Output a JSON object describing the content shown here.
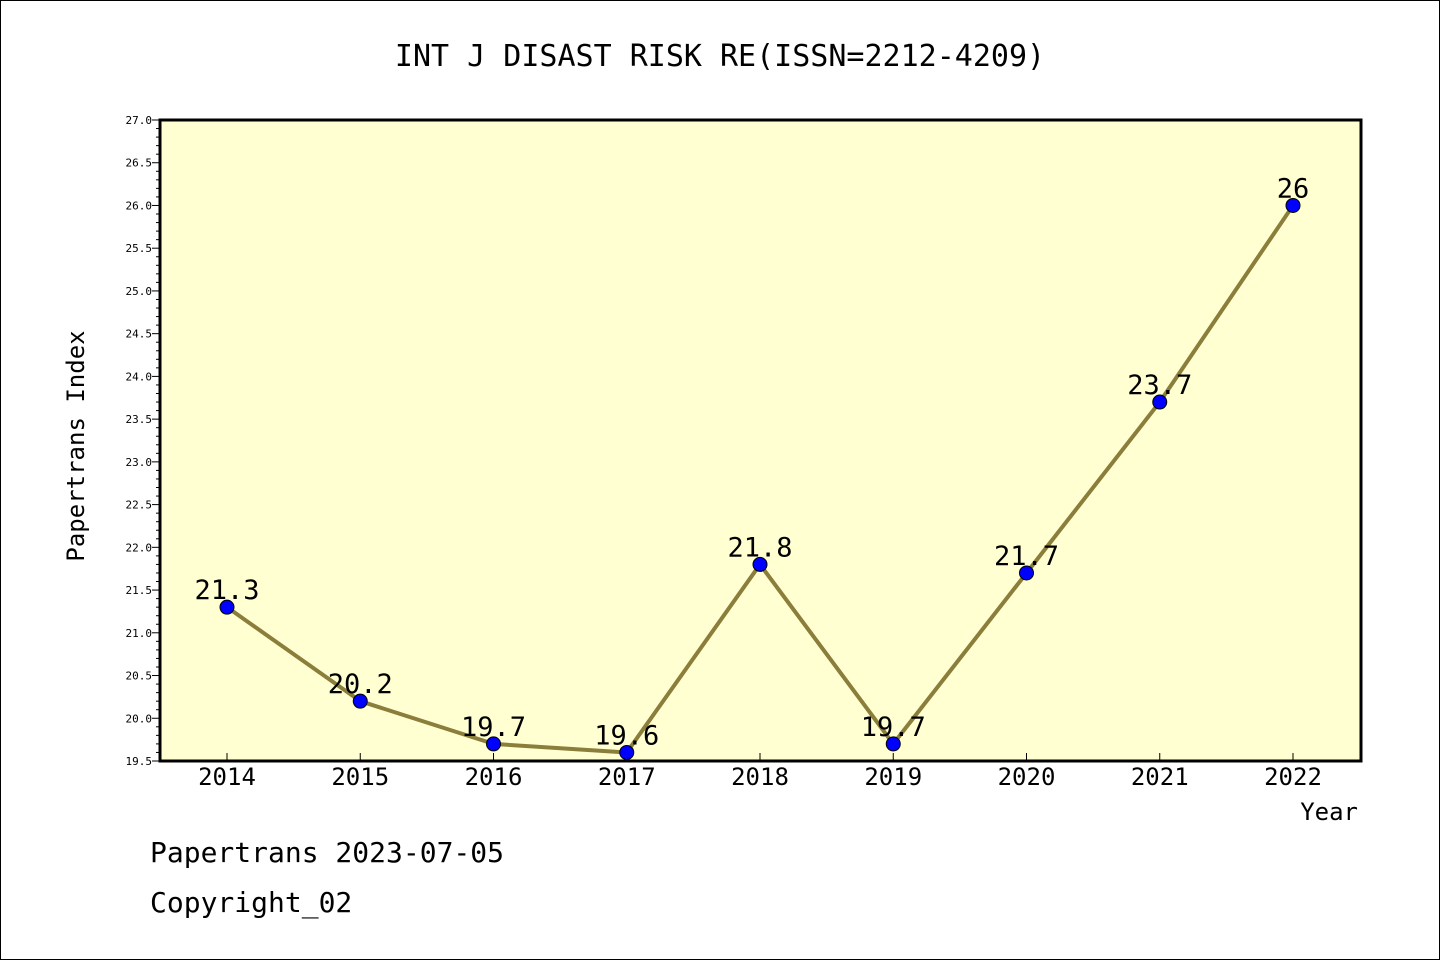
{
  "chart_data": {
    "type": "line",
    "title": "INT J DISAST RISK RE(ISSN=2212-4209)",
    "xlabel": "Year",
    "ylabel": "Papertrans Index",
    "categories": [
      "2014",
      "2015",
      "2016",
      "2017",
      "2018",
      "2019",
      "2020",
      "2021",
      "2022"
    ],
    "values": [
      21.3,
      20.2,
      19.7,
      19.6,
      21.8,
      19.7,
      21.7,
      23.7,
      26
    ],
    "data_labels": [
      "21.3",
      "20.2",
      "19.7",
      "19.6",
      "21.8",
      "19.7",
      "21.7",
      "23.7",
      "26"
    ],
    "ylim": [
      19.5,
      27.0
    ],
    "yticks": [
      "19.5",
      "20.0",
      "20.5",
      "21.0",
      "21.5",
      "22.0",
      "22.5",
      "23.0",
      "23.5",
      "24.0",
      "24.5",
      "25.0",
      "25.5",
      "26.0",
      "26.5",
      "27.0"
    ],
    "grid": false,
    "colors": {
      "plot_background": "#ffffd2",
      "line": "#8b7d3a",
      "marker": "#0000ff"
    }
  },
  "footer": {
    "date_line": "Papertrans 2023-07-05",
    "copyright": "Copyright_02"
  }
}
